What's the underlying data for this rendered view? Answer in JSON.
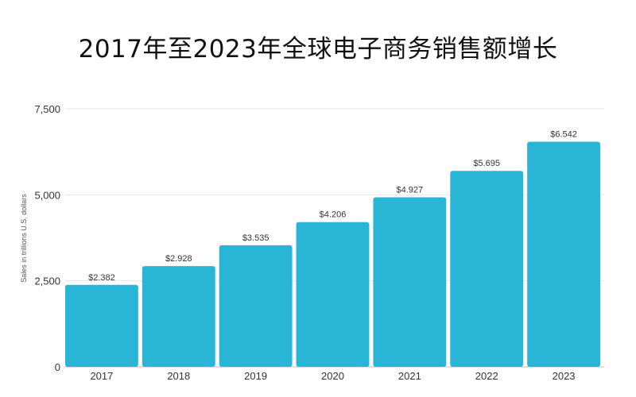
{
  "chart_data": {
    "type": "bar",
    "title": "2017年至2023年全球电子商务销售额增长",
    "ylabel": "Sales in trillions U.S. dollars",
    "xlabel": "",
    "categories": [
      "2017",
      "2018",
      "2019",
      "2020",
      "2021",
      "2022",
      "2023"
    ],
    "values": [
      2382,
      2928,
      3535,
      4206,
      4927,
      5695,
      6542
    ],
    "data_labels": [
      "$2.382",
      "$2.928",
      "$3.535",
      "$4.206",
      "$4.927",
      "$5.695",
      "$6.542"
    ],
    "ylim": [
      0,
      7500
    ],
    "yticks": [
      0,
      2500,
      5000,
      7500
    ],
    "ytick_labels": [
      "0",
      "2,500",
      "5,000",
      "7,500"
    ],
    "grid": true,
    "bar_color": "#29b6d6",
    "grid_color": "#e6e6e6",
    "text_color": "#333333"
  }
}
